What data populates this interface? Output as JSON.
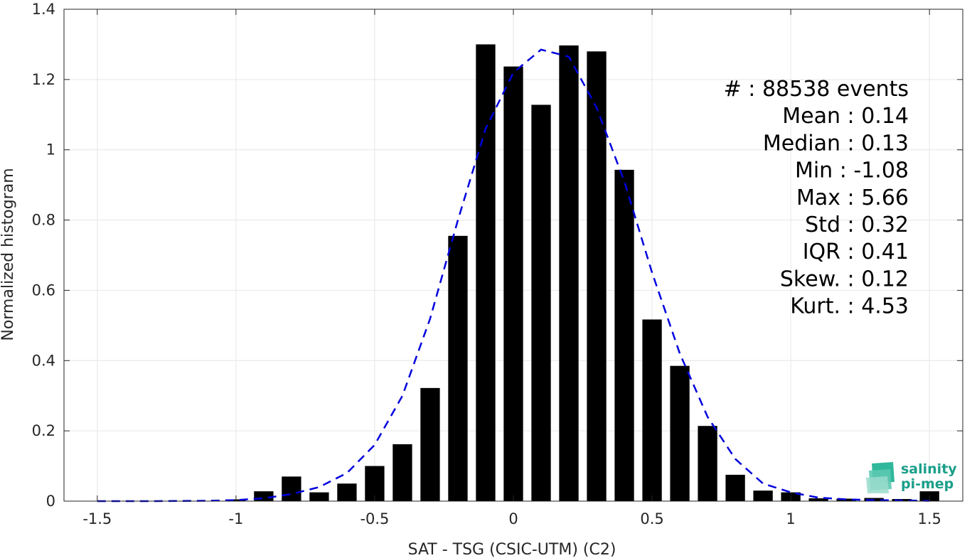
{
  "chart_data": {
    "type": "bar",
    "xlabel": "SAT - TSG (CSIC-UTM) (C2)",
    "ylabel": "Normalized histogram",
    "xlim": [
      -1.62,
      1.62
    ],
    "ylim": [
      0,
      1.4
    ],
    "xticks": [
      -1.5,
      -1,
      -0.5,
      0,
      0.5,
      1,
      1.5
    ],
    "xtick_labels": [
      "-1.5",
      "-1",
      "-0.5",
      "0",
      "0.5",
      "1",
      "1.5"
    ],
    "yticks": [
      0,
      0.2,
      0.4,
      0.6,
      0.8,
      1,
      1.2,
      1.4
    ],
    "ytick_labels": [
      "0",
      "0.2",
      "0.4",
      "0.6",
      "0.8",
      "1",
      "1.2",
      "1.4"
    ],
    "grid": true,
    "bar_color": "#000000",
    "bars": {
      "centers": [
        -1.5,
        -1.4,
        -1.3,
        -1.2,
        -1.1,
        -1.0,
        -0.9,
        -0.8,
        -0.7,
        -0.6,
        -0.5,
        -0.4,
        -0.3,
        -0.2,
        -0.1,
        0.0,
        0.1,
        0.2,
        0.3,
        0.4,
        0.5,
        0.6,
        0.7,
        0.8,
        0.9,
        1.0,
        1.1,
        1.2,
        1.3,
        1.4,
        1.5
      ],
      "values": [
        0,
        0,
        0,
        0,
        0,
        0.005,
        0.028,
        0.07,
        0.025,
        0.05,
        0.1,
        0.162,
        0.322,
        0.755,
        1.3,
        1.237,
        1.128,
        1.297,
        1.28,
        0.943,
        0.517,
        0.385,
        0.214,
        0.075,
        0.03,
        0.025,
        0.008,
        0.007,
        0.009,
        0.006,
        0.028
      ],
      "width": 0.07
    },
    "fit_curve": {
      "style": "dashed",
      "color": "#0000dd",
      "x": [
        -1.5,
        -1.3,
        -1.1,
        -1.0,
        -0.9,
        -0.8,
        -0.7,
        -0.6,
        -0.5,
        -0.4,
        -0.3,
        -0.2,
        -0.1,
        0.0,
        0.1,
        0.2,
        0.3,
        0.4,
        0.5,
        0.6,
        0.7,
        0.8,
        0.9,
        1.0,
        1.1,
        1.2,
        1.3,
        1.4,
        1.5
      ],
      "y": [
        0,
        0,
        0.001,
        0.003,
        0.008,
        0.02,
        0.04,
        0.08,
        0.16,
        0.3,
        0.52,
        0.8,
        1.06,
        1.22,
        1.285,
        1.265,
        1.12,
        0.91,
        0.65,
        0.42,
        0.24,
        0.12,
        0.05,
        0.025,
        0.01,
        0.005,
        0.003,
        0.002,
        0.001
      ]
    },
    "stats": [
      {
        "label": "#  : 88538 events"
      },
      {
        "label": "Mean : 0.14"
      },
      {
        "label": "Median : 0.13"
      },
      {
        "label": "Min : -1.08"
      },
      {
        "label": "Max : 5.66"
      },
      {
        "label": "Std : 0.32"
      },
      {
        "label": "IQR : 0.41"
      },
      {
        "label": "Skew. : 0.12"
      },
      {
        "label": "Kurt. : 4.53"
      }
    ]
  },
  "logo": {
    "line1": "salinity",
    "line2": "pi-mep",
    "color": "#1a9e8a"
  }
}
